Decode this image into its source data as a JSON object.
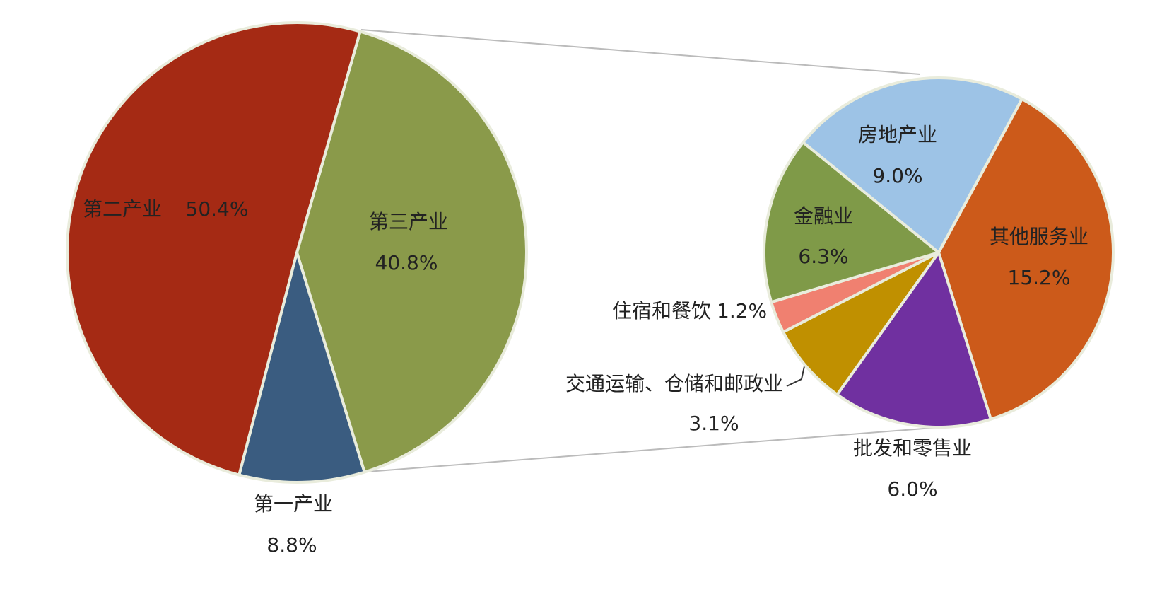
{
  "chart_data": [
    {
      "type": "pie",
      "categories": [
        "第三产业",
        "第一产业",
        "第二产业"
      ],
      "values": [
        40.8,
        8.8,
        50.4
      ],
      "value_labels": [
        "40.8%",
        "8.8%",
        "50.4%"
      ],
      "colors": [
        "#8a9a4a",
        "#3a5c80",
        "#a52a14"
      ]
    },
    {
      "type": "pie",
      "categories": [
        "其他服务业",
        "批发和零售业",
        "交通运输、仓储和邮政业",
        "住宿和餐饮",
        "金融业",
        "房地产业"
      ],
      "values": [
        15.2,
        6.0,
        3.1,
        1.2,
        6.3,
        9.0
      ],
      "value_labels": [
        "15.2%",
        "6.0%",
        "3.1%",
        "1.2%",
        "6.3%",
        "9.0%"
      ],
      "colors": [
        "#cc5a1a",
        "#7030a0",
        "#c09000",
        "#f08070",
        "#7f9a48",
        "#9dc3e6"
      ]
    }
  ]
}
